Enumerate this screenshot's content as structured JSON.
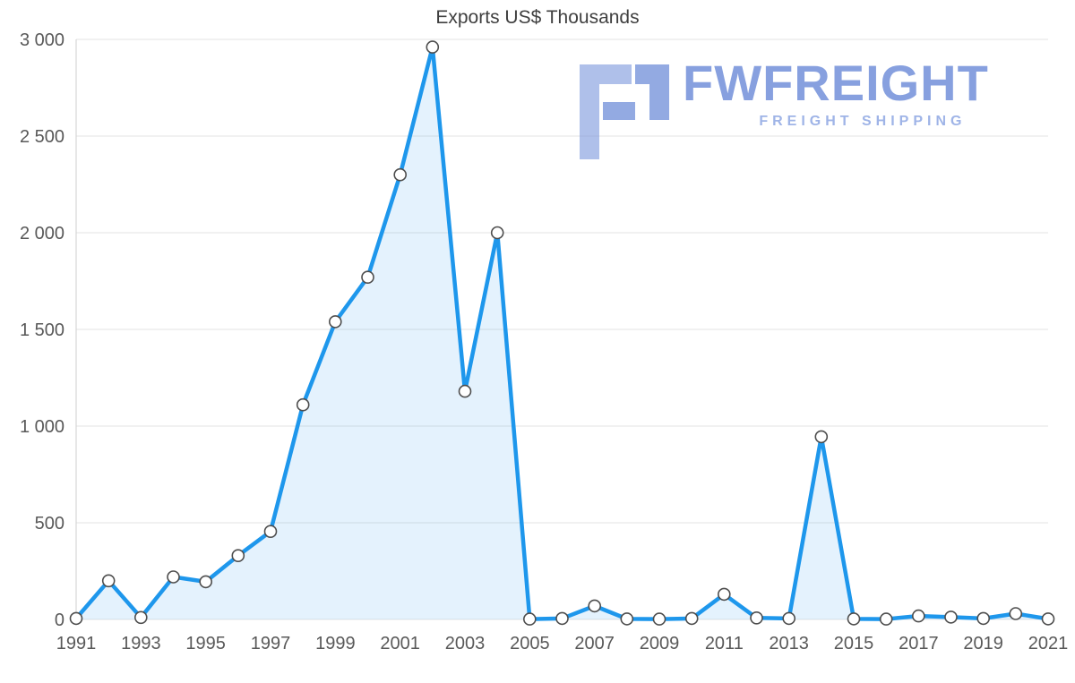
{
  "title": "Exports US$ Thousands",
  "watermark": {
    "brand": "FWFREIGHT",
    "tagline": "FREIGHT SHIPPING",
    "color": "#6d8cd8"
  },
  "chart_data": {
    "type": "area",
    "title": "Exports US$ Thousands",
    "xlabel": "",
    "ylabel": "",
    "x": [
      1991,
      1992,
      1993,
      1994,
      1995,
      1996,
      1997,
      1998,
      1999,
      2000,
      2001,
      2002,
      2003,
      2004,
      2005,
      2006,
      2007,
      2008,
      2009,
      2010,
      2011,
      2012,
      2013,
      2014,
      2015,
      2016,
      2017,
      2018,
      2019,
      2020,
      2021
    ],
    "values": [
      5,
      200,
      10,
      220,
      195,
      330,
      455,
      1110,
      1540,
      1770,
      2300,
      2960,
      1180,
      2000,
      2,
      5,
      70,
      3,
      2,
      5,
      130,
      8,
      5,
      945,
      3,
      2,
      18,
      12,
      5,
      30,
      3
    ],
    "ylim": [
      0,
      3000
    ],
    "ytick_step": 500,
    "ytick_labels": [
      "0",
      "500",
      "1 000",
      "1 500",
      "2 000",
      "2 500",
      "3 000"
    ],
    "xtick_labels": [
      "1991",
      "1993",
      "1995",
      "1997",
      "1999",
      "2001",
      "2003",
      "2005",
      "2007",
      "2009",
      "2011",
      "2013",
      "2015",
      "2017",
      "2019",
      "2021"
    ],
    "grid": "horizontal",
    "legend": "none",
    "line_color": "#1e97ec",
    "fill_color": "rgba(30,151,236,0.12)",
    "marker_fill": "#ffffff",
    "marker_stroke": "#4d4d4d",
    "grid_color": "#e3e3e3",
    "axis_color": "#cfcfcf",
    "tick_color": "#595959"
  }
}
